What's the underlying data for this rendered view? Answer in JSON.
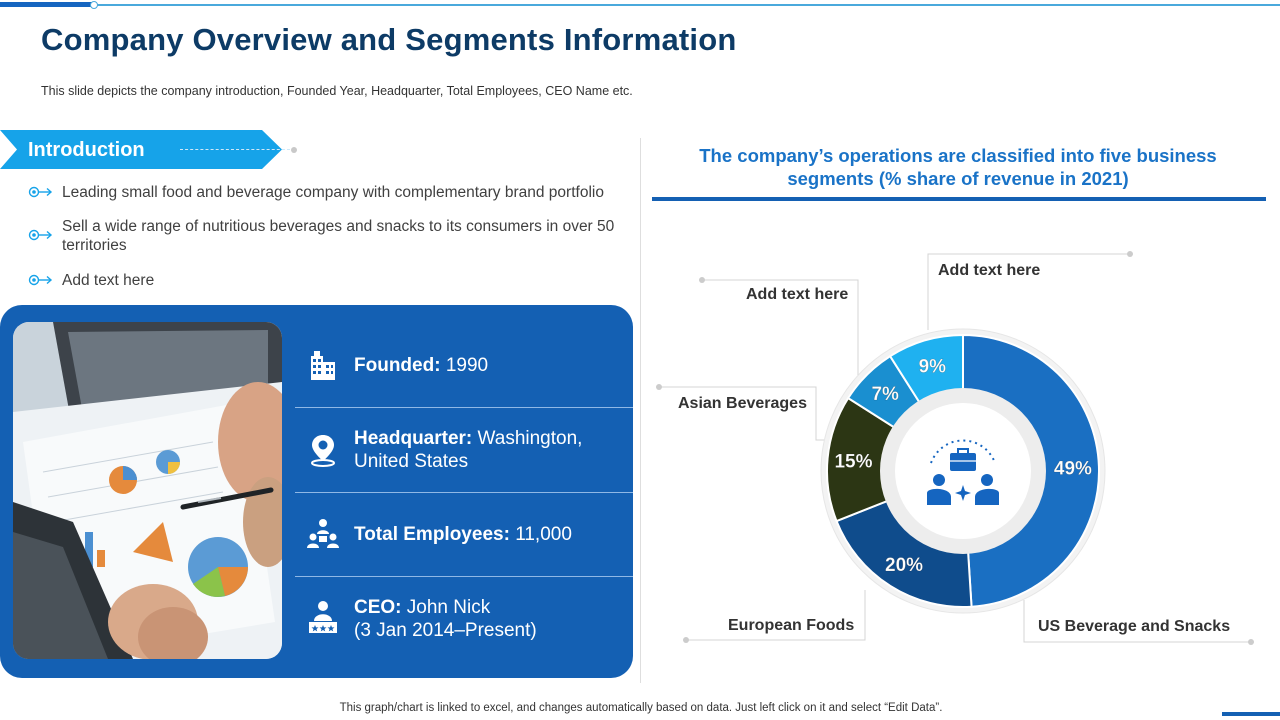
{
  "title": "Company Overview and Segments Information",
  "subtitle": "This slide depicts the company introduction, Founded Year, Headquarter, Total Employees, CEO Name etc.",
  "intro": {
    "label": "Introduction",
    "bullets": [
      "Leading small food and beverage company with complementary brand portfolio",
      "Sell a wide range of nutritious beverages and snacks to its consumers in over 50 territories",
      "Add text here"
    ]
  },
  "facts": {
    "founded": {
      "label": "Founded:",
      "value": "1990",
      "icon": "building-icon"
    },
    "headquarter": {
      "label": "Headquarter:",
      "value": "Washington,",
      "value2": "United States",
      "icon": "location-map-icon"
    },
    "employees": {
      "label": "Total Employees:",
      "value": "11,000",
      "icon": "team-icon"
    },
    "ceo": {
      "label": "CEO:",
      "value": "John Nick",
      "value2": "(3 Jan 2014–Present)",
      "icon": "ceo-person-icon"
    }
  },
  "chart_data": {
    "type": "pie",
    "title": "The company’s operations are classified into five business segments (% share of revenue in 2021)",
    "title_line1": "The company’s operations are classified into five business",
    "title_line2": "segments (% share of revenue in 2021)",
    "categories": [
      "US Beverage and Snacks",
      "European Foods",
      "Asian Beverages",
      "Add text here",
      "Add text here"
    ],
    "values": [
      49,
      20,
      15,
      7,
      9
    ],
    "value_labels": [
      "49%",
      "20%",
      "15%",
      "7%",
      "9%"
    ],
    "colors": [
      "#1a6fc2",
      "#0f4c8c",
      "#2c3614",
      "#1a8fd0",
      "#1fb1f0"
    ],
    "donut": true,
    "center_icon": "business-meeting-icon"
  },
  "footer": "This graph/chart is linked to excel,  and changes automatically based on data. Just left click on it and select “Edit Data”."
}
